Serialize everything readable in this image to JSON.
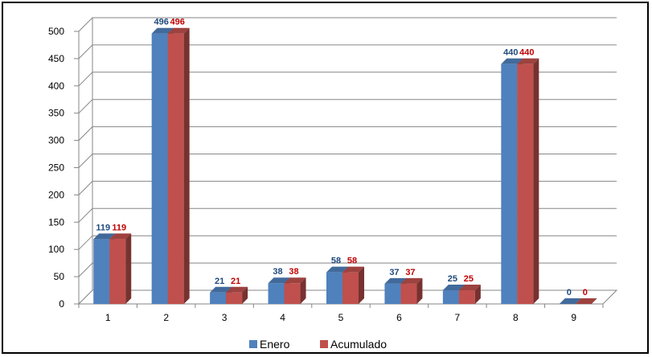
{
  "chart_data": {
    "type": "bar",
    "categories": [
      "1",
      "2",
      "3",
      "4",
      "5",
      "6",
      "7",
      "8",
      "9"
    ],
    "series": [
      {
        "name": "Enero",
        "values": [
          119,
          496,
          21,
          38,
          58,
          37,
          25,
          440,
          0
        ],
        "color": "#4F81BD",
        "label_color": "#1F497D"
      },
      {
        "name": "Acumulado",
        "values": [
          119,
          496,
          21,
          38,
          58,
          37,
          25,
          440,
          0
        ],
        "color": "#C0504D",
        "label_color": "#C00000"
      }
    ],
    "y_ticks": [
      "0",
      "50",
      "100",
      "150",
      "200",
      "250",
      "300",
      "350",
      "400",
      "450",
      "500"
    ],
    "ylim": [
      0,
      500
    ],
    "grid": true,
    "legend_position": "bottom",
    "style": "3d-clustered-column"
  }
}
